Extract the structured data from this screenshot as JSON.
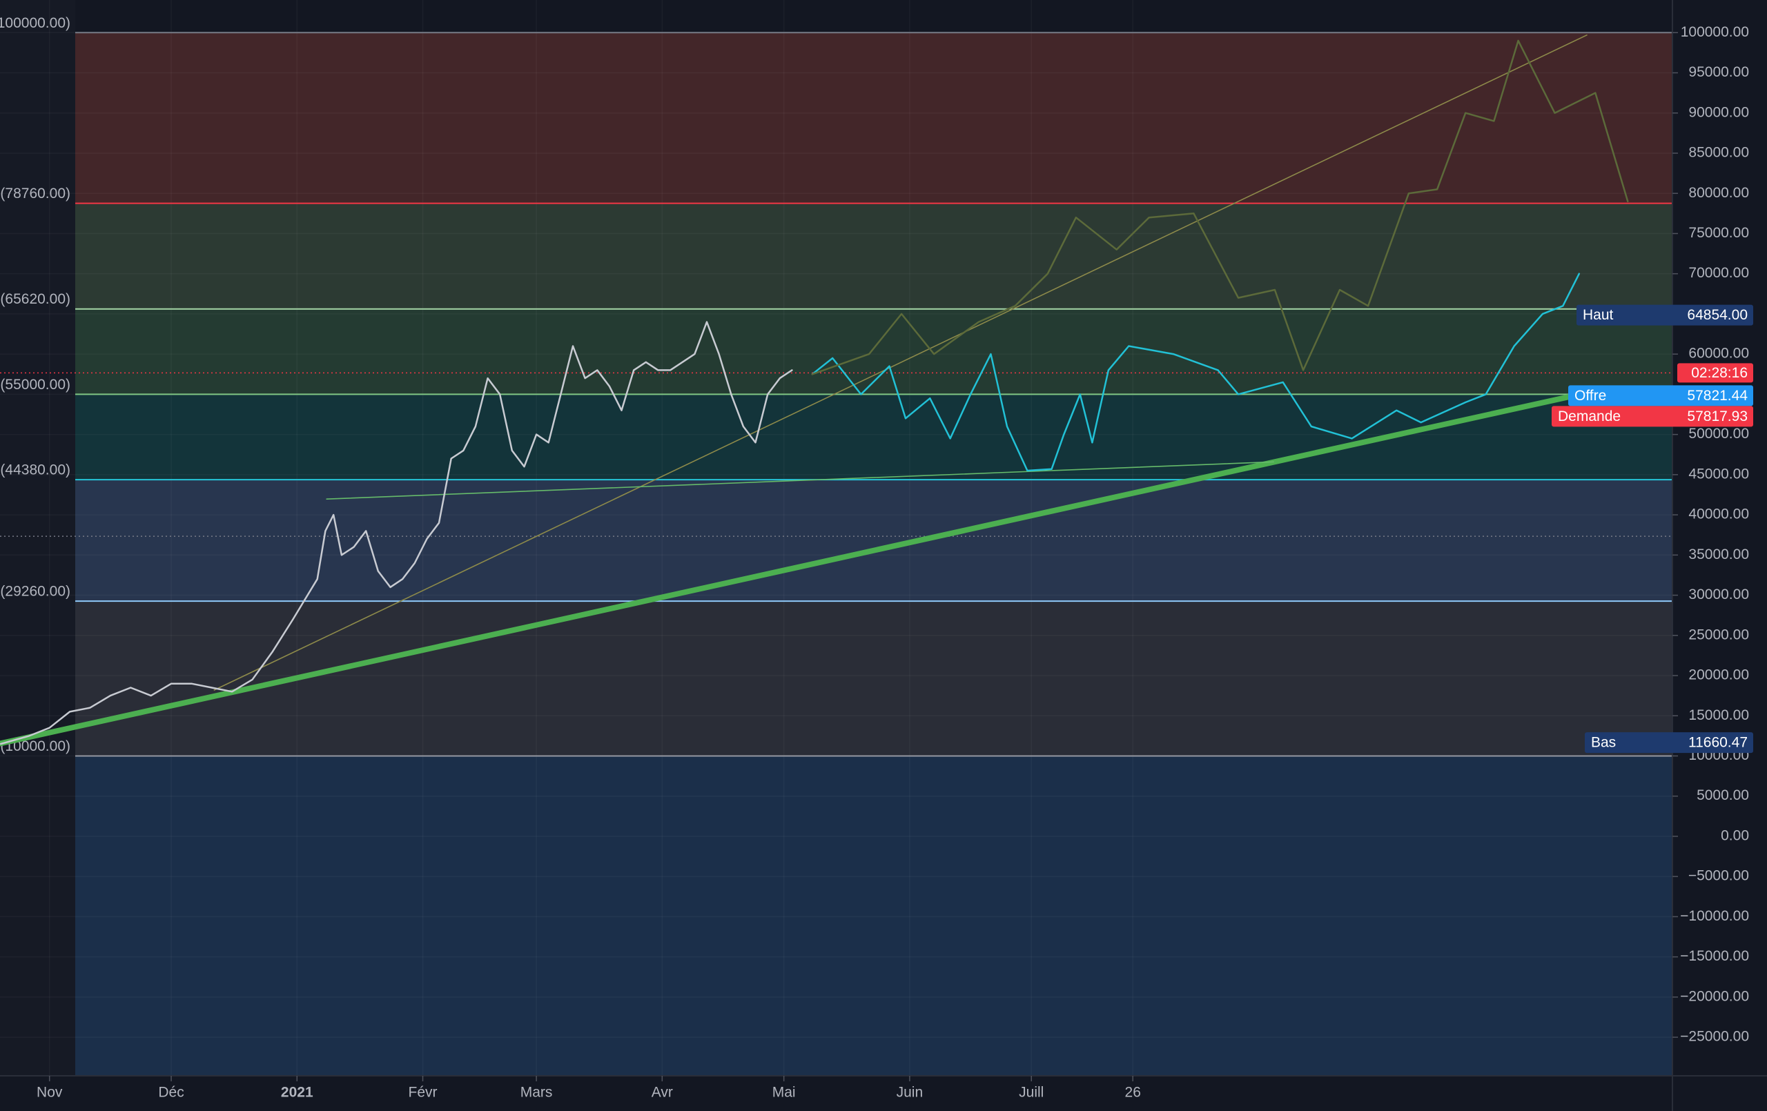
{
  "chart_data": {
    "type": "line",
    "grid": true,
    "xlim": [
      -12.2,
      400
    ],
    "xticks": [
      {
        "value": 0,
        "label": "Nov"
      },
      {
        "value": 30,
        "label": "Déc"
      },
      {
        "value": 61,
        "label": "2021"
      },
      {
        "value": 92,
        "label": "Févr"
      },
      {
        "value": 120,
        "label": "Mars"
      },
      {
        "value": 151,
        "label": "Avr"
      },
      {
        "value": 181,
        "label": "Mai"
      },
      {
        "value": 212,
        "label": "Juin"
      },
      {
        "value": 242,
        "label": "Juill"
      },
      {
        "value": 267,
        "label": "26"
      }
    ],
    "ylim": [
      -29800,
      104060
    ],
    "yticks": [
      {
        "value": 100000,
        "label": "100000.00"
      },
      {
        "value": 95000,
        "label": "95000.00"
      },
      {
        "value": 90000,
        "label": "90000.00"
      },
      {
        "value": 85000,
        "label": "85000.00"
      },
      {
        "value": 80000,
        "label": "80000.00"
      },
      {
        "value": 75000,
        "label": "75000.00"
      },
      {
        "value": 70000,
        "label": "70000.00"
      },
      {
        "value": 65000,
        "label": "65000.00"
      },
      {
        "value": 60000,
        "label": "60000.00"
      },
      {
        "value": 55000,
        "label": "55000.00"
      },
      {
        "value": 50000,
        "label": "50000.00"
      },
      {
        "value": 45000,
        "label": "45000.00"
      },
      {
        "value": 40000,
        "label": "40000.00"
      },
      {
        "value": 35000,
        "label": "35000.00"
      },
      {
        "value": 30000,
        "label": "30000.00"
      },
      {
        "value": 25000,
        "label": "25000.00"
      },
      {
        "value": 20000,
        "label": "20000.00"
      },
      {
        "value": 15000,
        "label": "15000.00"
      },
      {
        "value": 10000,
        "label": "10000.00"
      },
      {
        "value": 5000,
        "label": "5000.00"
      },
      {
        "value": 0,
        "label": "0.00"
      },
      {
        "value": -5000,
        "label": "−5000.00"
      },
      {
        "value": -10000,
        "label": "−10000.00"
      },
      {
        "value": -15000,
        "label": "−15000.00"
      },
      {
        "value": -20000,
        "label": "−20000.00"
      },
      {
        "value": -25000,
        "label": "−25000.00"
      }
    ],
    "levels": [
      {
        "value": 100000,
        "label": "(100000.00)",
        "color": "#787b86",
        "fill": "#432629"
      },
      {
        "value": 78760,
        "label": "(78760.00)",
        "color": "#f23645",
        "fill": "#2c3a33"
      },
      {
        "value": 65620,
        "label": "(65620.00)",
        "color": "#a5d6a7",
        "fill": "#243b32"
      },
      {
        "value": 55000,
        "label": "(55000.00)",
        "color": "#81c784",
        "fill": "#13343a"
      },
      {
        "value": 44380,
        "label": "(44380.00)",
        "color": "#26c6da",
        "fill": "#28364f"
      },
      {
        "value": 29260,
        "label": "(29260.00)",
        "color": "#90caf9",
        "fill": "#2a2d37"
      },
      {
        "value": 10000,
        "label": "(10000.00)",
        "color": "#9598a1",
        "fill": "#1b2f4a"
      }
    ],
    "series": [
      {
        "color": "#c8cbd2",
        "width": 2.5,
        "x": [
          -12,
          -5,
          0,
          5,
          10,
          15,
          20,
          25,
          30,
          35,
          40,
          45,
          50,
          55,
          60,
          63,
          66,
          68,
          70,
          72,
          75,
          78,
          81,
          84,
          87,
          90,
          93,
          96,
          99,
          102,
          105,
          108,
          111,
          114,
          117,
          120,
          123,
          126,
          129,
          132,
          135,
          138,
          141,
          144,
          147,
          150,
          153,
          156,
          159,
          162,
          165,
          168,
          171,
          174,
          177,
          180,
          183
        ],
        "values": [
          11500,
          12500,
          13500,
          15500,
          16000,
          17500,
          18500,
          17500,
          19000,
          19000,
          18500,
          18000,
          19500,
          23000,
          27000,
          29500,
          32000,
          38000,
          40000,
          35000,
          36000,
          38000,
          33000,
          31000,
          32000,
          34000,
          37000,
          39000,
          47000,
          48000,
          51000,
          57000,
          55000,
          48000,
          46000,
          50000,
          49000,
          55000,
          61000,
          57000,
          58000,
          56000,
          53000,
          58000,
          59000,
          58000,
          58000,
          59000,
          60000,
          64000,
          60000,
          55000,
          51000,
          49000,
          55000,
          57000,
          58000
        ]
      },
      {
        "color": "#22c1d6",
        "width": 2.5,
        "x": [
          188,
          193,
          200,
          207,
          211,
          217,
          222,
          227,
          232,
          236,
          241,
          247,
          250,
          254,
          257,
          261,
          266,
          277,
          288,
          293,
          304,
          311,
          321,
          332,
          338,
          349,
          354,
          361,
          368,
          373,
          377
        ],
        "values": [
          57500,
          59500,
          55000,
          58500,
          52000,
          54500,
          49500,
          55000,
          60000,
          51000,
          45500,
          45700,
          50000,
          55000,
          49000,
          58000,
          61000,
          60000,
          58000,
          55000,
          56500,
          51000,
          49500,
          53000,
          51500,
          54000,
          55000,
          61000,
          65000,
          66000,
          70000
        ]
      },
      {
        "color": "#5c6a3a",
        "width": 2.5,
        "x": [
          188,
          202,
          210,
          218,
          229,
          238,
          246,
          253,
          263,
          271,
          282,
          293,
          302,
          309,
          318,
          325,
          335,
          342,
          349,
          356,
          362,
          371,
          381,
          389
        ],
        "values": [
          57500,
          60000,
          65000,
          60000,
          64000,
          66000,
          70000,
          77000,
          73000,
          77000,
          77500,
          67000,
          68000,
          58000,
          68000,
          66000,
          80000,
          80500,
          90000,
          89000,
          99000,
          90000,
          92500,
          79000
        ]
      }
    ],
    "trendlines": [
      {
        "color": "#4caf50",
        "width": 8,
        "x": [
          -12.2,
          380
        ],
        "values": [
          11539,
          55300
        ]
      },
      {
        "color": "#8d8a4a",
        "width": 1.6,
        "x": [
          40.6,
          378.9
        ],
        "values": [
          18200,
          99700
        ]
      },
      {
        "color": "#66bb6a",
        "width": 1.6,
        "x": [
          68.3,
          301.7
        ],
        "values": [
          41960,
          46590
        ]
      }
    ],
    "dotted_levels": [
      {
        "value": 57660,
        "color": "#f23645"
      },
      {
        "value": 37330,
        "color": "#787b86"
      }
    ],
    "price_tags": [
      {
        "name": "Haut",
        "price": {
          "value": 64854,
          "label": "64854.00"
        },
        "color": "#1e3a6e"
      },
      {
        "name": "Offre",
        "price": {
          "value": 57821.44,
          "label": "57821.44"
        },
        "color": "#2196f3"
      },
      {
        "name": "Demande",
        "price": {
          "value": 57817.93,
          "label": "57817.93"
        },
        "color": "#f23645"
      },
      {
        "name": "Bas",
        "price": {
          "value": 11660.47,
          "label": "11660.47"
        },
        "color": "#1e3a6e"
      }
    ],
    "timer": {
      "text": "02:28:16",
      "color": "#f23645"
    }
  }
}
